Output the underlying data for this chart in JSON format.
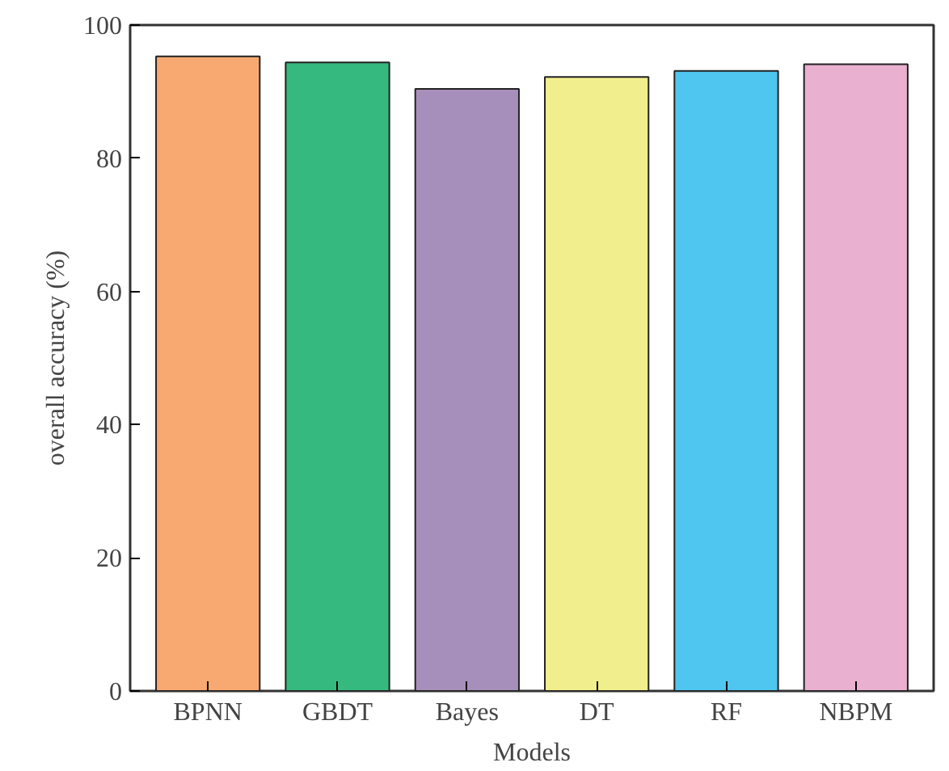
{
  "chart_data": {
    "type": "bar",
    "xlabel": "Models",
    "ylabel": "overall accuracy (%)",
    "categories": [
      "BPNN",
      "GBDT",
      "Bayes",
      "DT",
      "RF",
      "NBPM"
    ],
    "values": [
      95.3,
      94.4,
      90.4,
      92.2,
      93.1,
      94.1
    ],
    "colors": [
      "#f8a972",
      "#36b97e",
      "#a78fbb",
      "#f1ee8e",
      "#4fc6f0",
      "#e9b0d0"
    ],
    "ylim": [
      0,
      100
    ],
    "yticks": [
      0,
      20,
      40,
      60,
      80,
      100
    ],
    "grid": false
  }
}
